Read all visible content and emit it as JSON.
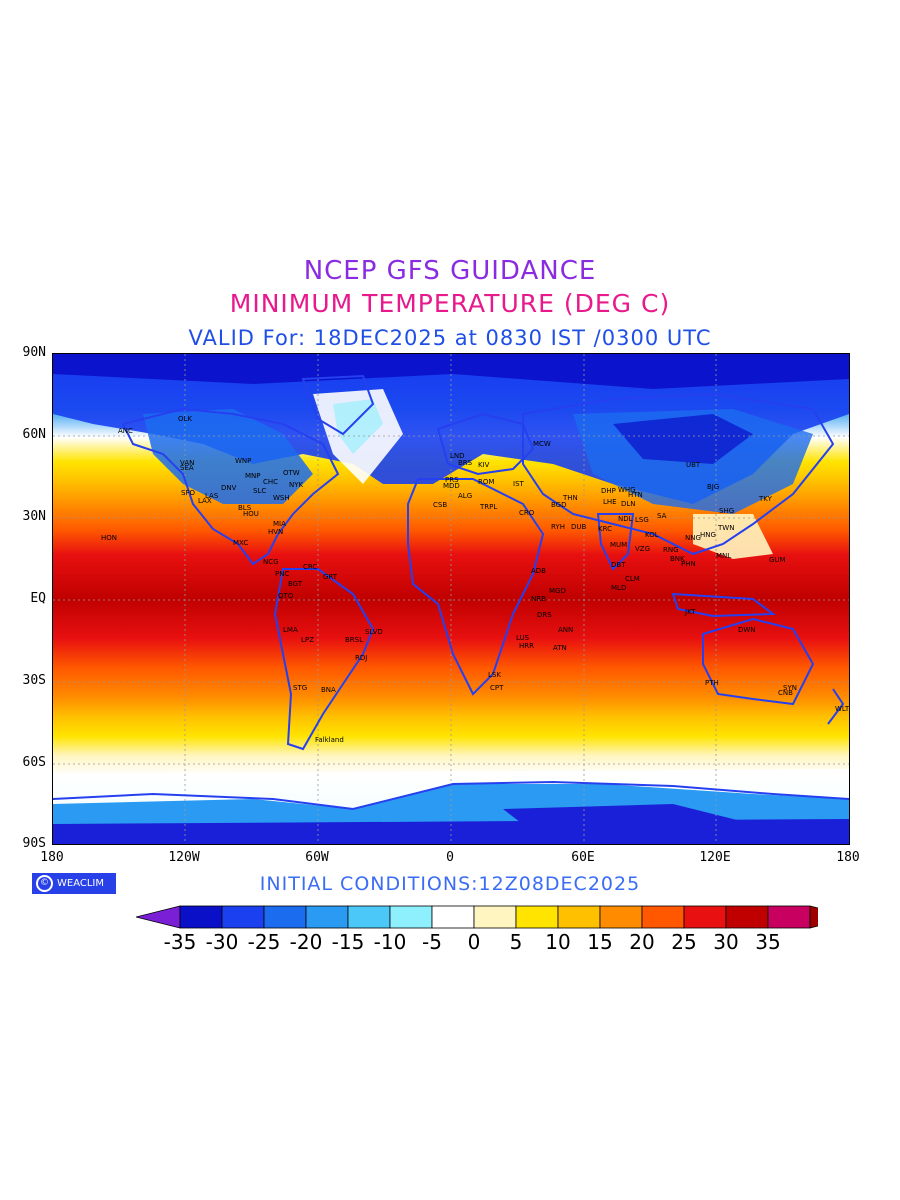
{
  "title": {
    "line1": "NCEP GFS GUIDANCE",
    "line2": "MINIMUM TEMPERATURE (DEG C)",
    "line3": "VALID For: 18DEC2025 at 0830 IST /0300 UTC"
  },
  "footer": {
    "initial_conditions": "INITIAL  CONDITIONS:12Z08DEC2025",
    "logo_text": "WEACLIM"
  },
  "axes": {
    "lat_labels": [
      "90N",
      "60N",
      "30N",
      "EQ",
      "30S",
      "60S",
      "90S"
    ],
    "lon_labels": [
      "180",
      "120W",
      "60W",
      "0",
      "60E",
      "120E",
      "180"
    ]
  },
  "colorbar": {
    "labels": [
      "-35",
      "-30",
      "-25",
      "-20",
      "-15",
      "-10",
      "-5",
      "0",
      "5",
      "10",
      "15",
      "20",
      "25",
      "30",
      "35"
    ],
    "colors": [
      "#7a1fd6",
      "#0a10c8",
      "#1a40f0",
      "#1c6cf0",
      "#2a9af2",
      "#4cc8f8",
      "#8ef0fc",
      "#ffffff",
      "#fff5c0",
      "#ffe400",
      "#ffc000",
      "#ff8c00",
      "#ff5800",
      "#e81010",
      "#c00000",
      "#c80060",
      "#9c0000"
    ]
  },
  "cities": [
    "ANC",
    "OLK",
    "VAN",
    "SEA",
    "WNP",
    "MNP",
    "OTW",
    "CHC",
    "SLC",
    "NYK",
    "DNV",
    "SFO",
    "LAS",
    "LAX",
    "WSH",
    "BLS",
    "HOU",
    "MIA",
    "HVN",
    "MXC",
    "HON",
    "NCG",
    "PNC",
    "CRC",
    "BGT",
    "GRT",
    "QTO",
    "LMA",
    "LPZ",
    "BRSL",
    "SLVD",
    "RDJ",
    "STG",
    "BNA",
    "Falkland",
    "MCW",
    "LND",
    "BRS",
    "KIV",
    "PRS",
    "ROM",
    "IST",
    "MDD",
    "ALG",
    "CSB",
    "TRPL",
    "CRO",
    "BGD",
    "THN",
    "RYH",
    "DUB",
    "KRC",
    "DHP",
    "WHG",
    "HTN",
    "LHE",
    "DLN",
    "NDL",
    "LSG",
    "SA",
    "MUM",
    "VZG",
    "KOL",
    "DBT",
    "CLM",
    "MLD",
    "ADB",
    "NRB",
    "MGD",
    "DRS",
    "ANN",
    "LUS",
    "HRR",
    "ATN",
    "LSK",
    "CPT",
    "UBT",
    "BJG",
    "TKY",
    "SHG",
    "TWN",
    "HNG",
    "NNG",
    "RNG",
    "BNK",
    "PHN",
    "MNL",
    "GUM",
    "JKT",
    "DWN",
    "PTH",
    "SYN",
    "CNB",
    "WLT"
  ]
}
